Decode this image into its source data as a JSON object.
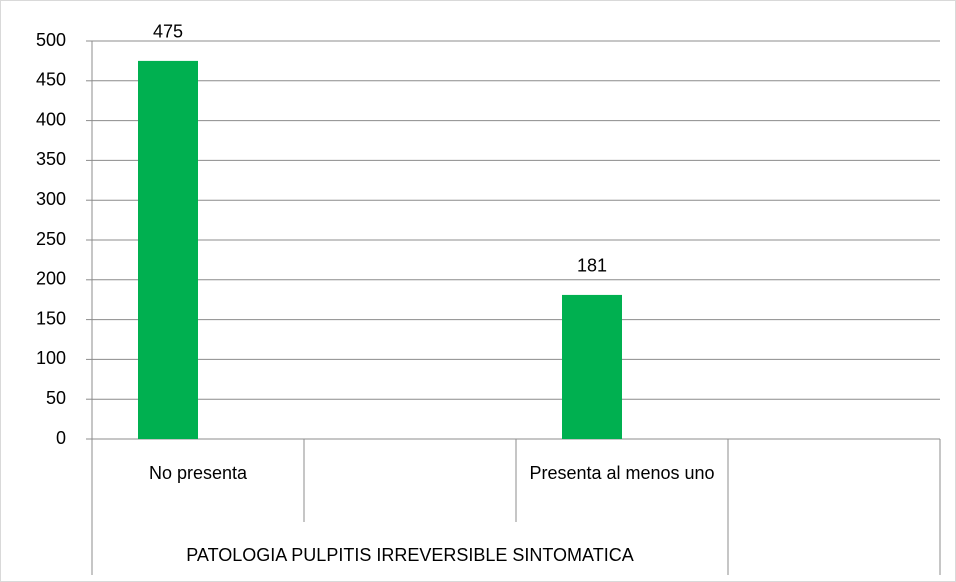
{
  "chart_data": {
    "type": "bar",
    "categories": [
      "No presenta",
      null,
      "Presenta al menos uno",
      null
    ],
    "group_label": "PATOLOGIA PULPITIS IRREVERSIBLE SINTOMATICA",
    "values": [
      475,
      null,
      181,
      null
    ],
    "color": "#00b050",
    "ylim": [
      0,
      500
    ],
    "yticks": [
      0,
      50,
      100,
      150,
      200,
      250,
      300,
      350,
      400,
      450,
      500
    ],
    "grid": true
  }
}
